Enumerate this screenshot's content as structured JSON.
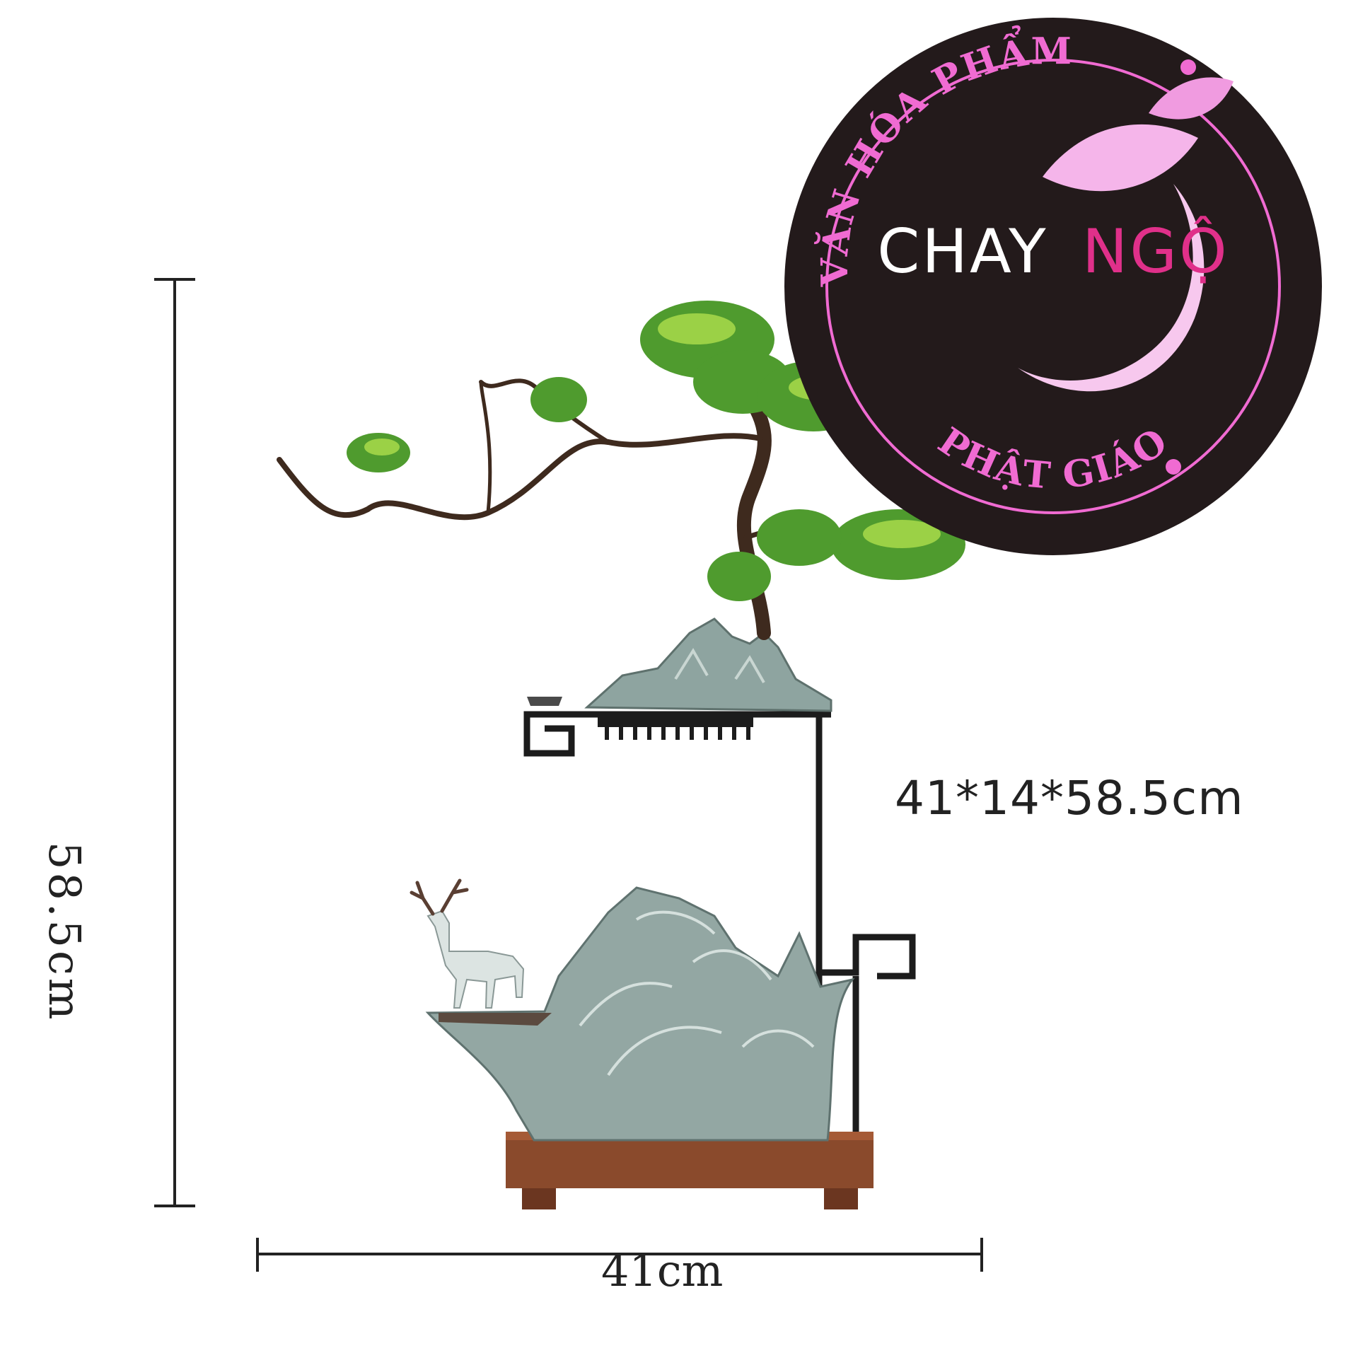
{
  "product": {
    "size_label": "41*14*58.5cm",
    "height_label": "58.5cm",
    "width_label": "41cm"
  },
  "logo": {
    "brand_part1": "CHAY",
    "brand_part2": "NGỘ",
    "arc_top": "VĂN HÓA PHẨM",
    "arc_bottom": "PHẬT GIÁO",
    "colors": {
      "disc": "#231a1b",
      "pink": "#f06bd2",
      "accent": "#e0308a",
      "white": "#ffffff"
    }
  }
}
